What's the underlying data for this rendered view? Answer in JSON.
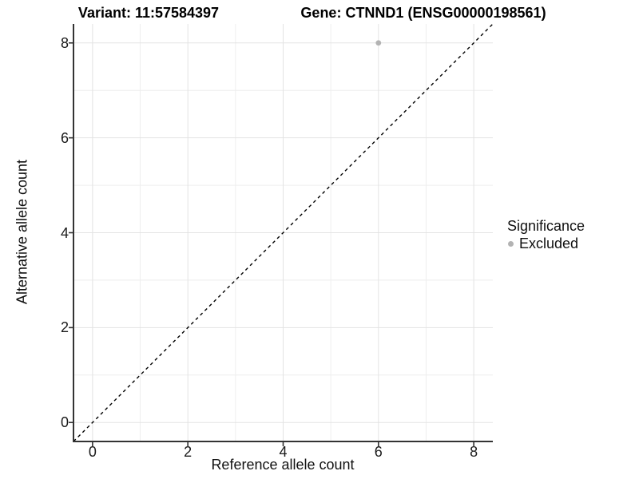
{
  "chart_data": {
    "type": "scatter",
    "title_left": "Variant: 11:57584397",
    "title_right": "Gene: CTNND1 (ENSG00000198561)",
    "xlabel": "Reference allele count",
    "ylabel": "Alternative allele count",
    "xlim": [
      -0.4,
      8.4
    ],
    "ylim": [
      -0.4,
      8.4
    ],
    "xticks": [
      0,
      2,
      4,
      6,
      8
    ],
    "yticks": [
      0,
      2,
      4,
      6,
      8
    ],
    "grid": true,
    "series": [
      {
        "name": "Excluded",
        "color": "#b3b3b3",
        "points": [
          {
            "x": 6,
            "y": 8
          }
        ]
      }
    ],
    "reference_line": {
      "type": "identity",
      "equation": "y = x",
      "style": "dashed",
      "color": "#000000"
    },
    "legend": {
      "position": "right",
      "title": "Significance",
      "items": [
        {
          "label": "Excluded",
          "color": "#b3b3b3"
        }
      ]
    },
    "colors": {
      "background": "#ffffff",
      "grid_major": "#e3e3e3",
      "grid_minor": "#eeeeee",
      "axis_line": "#333333",
      "point": "#b3b3b3",
      "text": "#1a1a1a"
    }
  }
}
